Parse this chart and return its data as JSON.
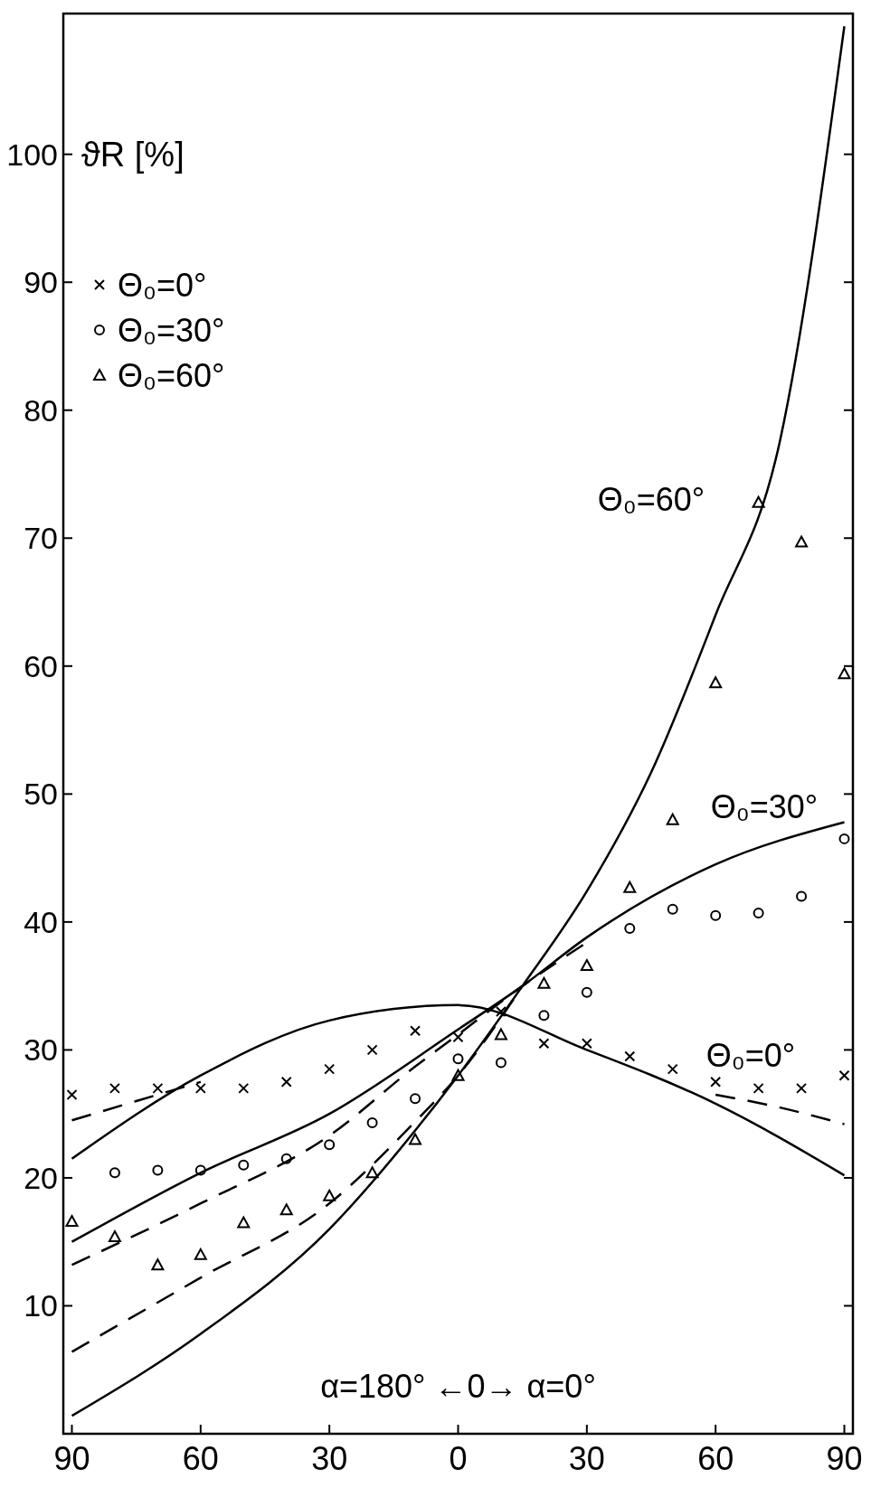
{
  "chart_data": {
    "type": "line",
    "ylabel": "ϑR [%]",
    "xlim": [
      -92,
      92
    ],
    "ylim": [
      0,
      111
    ],
    "xticks": [
      {
        "value": -90,
        "label": "90"
      },
      {
        "value": -60,
        "label": "60"
      },
      {
        "value": -30,
        "label": "30"
      },
      0,
      30,
      60,
      90
    ],
    "yticks": [
      10,
      20,
      30,
      40,
      50,
      60,
      70,
      80,
      90,
      100
    ],
    "grid": false,
    "legend": "top left",
    "series": [
      {
        "type": "line",
        "color": "#000000",
        "line_style": "solid",
        "marker": "none",
        "x": [
          -90,
          -60,
          -30,
          0,
          30,
          60,
          90
        ],
        "values": [
          21.5,
          28,
          32.3,
          33.5,
          30,
          25.8,
          20.2
        ]
      },
      {
        "type": "line",
        "color": "#000000",
        "line_style": "solid",
        "marker": "none",
        "x": [
          -90,
          -60,
          -30,
          0,
          15,
          30,
          60,
          90
        ],
        "values": [
          15,
          20.4,
          25,
          31.6,
          35,
          38.8,
          44.5,
          47.8
        ]
      },
      {
        "type": "line",
        "color": "#000000",
        "line_style": "solid",
        "marker": "none",
        "x": [
          -90,
          -60,
          -30,
          -10,
          0,
          15,
          30,
          45,
          60,
          75,
          90
        ],
        "values": [
          1.4,
          7.8,
          16,
          23.7,
          28,
          35,
          42.4,
          51.7,
          64,
          77.6,
          110
        ]
      },
      {
        "color": "#000000",
        "line_style": "dashed",
        "marker": "none",
        "x": [
          -90,
          -75,
          -60
        ],
        "values": [
          24.5,
          26,
          27.5
        ]
      },
      {
        "color": "#000000",
        "line_style": "dashed",
        "marker": "none",
        "x": [
          60,
          75,
          90
        ],
        "values": [
          26.5,
          25.5,
          24.2
        ]
      },
      {
        "type": "line",
        "color": "#000000",
        "line_style": "dashed",
        "marker": "none",
        "x": [
          -90,
          -60,
          -30,
          -10,
          0,
          15,
          30
        ],
        "values": [
          13.2,
          18,
          23.3,
          28.7,
          31.2,
          35,
          38.4
        ]
      },
      {
        "type": "line",
        "color": "#000000",
        "line_style": "dashed",
        "marker": "none",
        "x": [
          -90,
          -60,
          -30,
          -10,
          0,
          15
        ],
        "values": [
          6.4,
          12.2,
          18,
          24.4,
          28,
          35
        ]
      },
      {
        "type": "scatter",
        "name": "Θ₀=0°",
        "color": "#000000",
        "marker": "cross",
        "x": [
          -90,
          -80,
          -70,
          -60,
          -50,
          -40,
          -30,
          -20,
          -10,
          0,
          10,
          20,
          30,
          40,
          50,
          60,
          70,
          80,
          90
        ],
        "values": [
          26.5,
          27,
          27,
          27,
          27,
          27.5,
          28.5,
          30,
          31.5,
          31,
          33,
          30.5,
          30.5,
          29.5,
          28.5,
          27.5,
          27,
          27,
          28
        ]
      },
      {
        "type": "scatter",
        "name": "Θ₀=30°",
        "color": "#000000",
        "marker": "circle",
        "x": [
          -80,
          -70,
          -60,
          -50,
          -40,
          -30,
          -20,
          -10,
          0,
          10,
          20,
          30,
          40,
          50,
          60,
          70,
          80,
          90
        ],
        "values": [
          20.4,
          20.6,
          20.6,
          21,
          21.5,
          22.6,
          24.3,
          26.2,
          29.3,
          29,
          32.7,
          34.5,
          39.5,
          41,
          40.5,
          40.7,
          42,
          46.5
        ]
      },
      {
        "type": "scatter",
        "name": "Θ₀=60°",
        "color": "#000000",
        "marker": "triangle",
        "x": [
          -90,
          -80,
          -70,
          -60,
          -50,
          -40,
          -30,
          -20,
          -10,
          0,
          10,
          20,
          30,
          40,
          50,
          60,
          70,
          80,
          90
        ],
        "values": [
          16.6,
          15.4,
          13.2,
          14,
          16.5,
          17.5,
          18.6,
          20.4,
          23,
          28,
          31.2,
          35.2,
          36.6,
          42.7,
          48,
          58.7,
          72.8,
          69.7,
          59.4
        ]
      }
    ],
    "annotations": [
      "Θ₀=60°",
      "Θ₀=30°",
      "Θ₀=0°",
      "α=180°  ←0→  α=0°"
    ]
  }
}
